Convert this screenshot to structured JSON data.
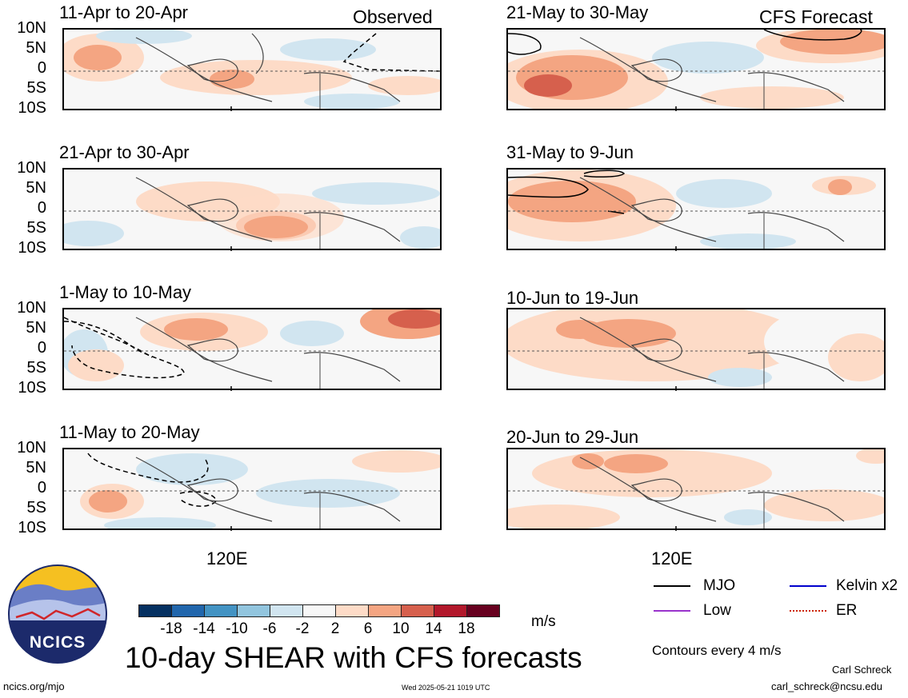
{
  "header": {
    "left_tag": "Observed",
    "right_tag": "CFS Forecast"
  },
  "y_tick_labels": [
    "10N",
    "5N",
    "0",
    "5S",
    "10S"
  ],
  "x_tick_label": "120E",
  "panels_observed": [
    {
      "title": "11-Apr to 20-Apr"
    },
    {
      "title": "21-Apr to 30-Apr"
    },
    {
      "title": "1-May to 10-May"
    },
    {
      "title": "11-May to 20-May"
    }
  ],
  "panels_forecast": [
    {
      "title": "21-May to 30-May"
    },
    {
      "title": "31-May to 9-Jun"
    },
    {
      "title": "10-Jun to 19-Jun"
    },
    {
      "title": "20-Jun to 29-Jun"
    }
  ],
  "colorbar": {
    "ticks": [
      "-18",
      "-14",
      "-10",
      "-6",
      "-2",
      "2",
      "6",
      "10",
      "14",
      "18"
    ],
    "colors": [
      "#053061",
      "#2166ac",
      "#4393c3",
      "#92c5de",
      "#d1e5f0",
      "#f7f7f7",
      "#fddbc7",
      "#f4a582",
      "#d6604d",
      "#b2182b",
      "#67001f"
    ],
    "unit": "m/s"
  },
  "legend": {
    "items": [
      {
        "label": "MJO",
        "color": "#000000"
      },
      {
        "label": "Kelvin x2",
        "color": "#0000cc"
      },
      {
        "label": "Low",
        "color": "#9933cc"
      },
      {
        "label": "ER",
        "color": "#cc2200"
      }
    ],
    "contour_note": "Contours every 4 m/s"
  },
  "logo": {
    "text": "NCICS"
  },
  "footer": {
    "main_title": "10-day SHEAR with CFS forecasts",
    "url": "ncics.org/mjo",
    "timestamp": "Wed 2025-05-21 1019 UTC",
    "author": "Carl Schreck",
    "email": "carl_schreck@ncsu.edu"
  }
}
